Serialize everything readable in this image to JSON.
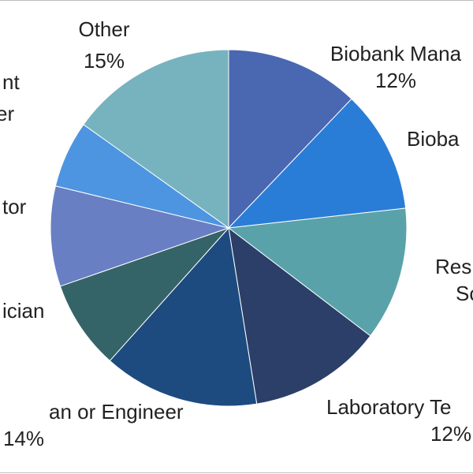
{
  "chart_data": {
    "type": "pie",
    "start_angle_deg": 0,
    "direction": "clockwise",
    "slices": [
      {
        "label": "Biobank Mana",
        "value": 12,
        "percent_label": "12%",
        "color": "#4A68B1"
      },
      {
        "label": "Bioba",
        "value": 11,
        "percent_label": "",
        "color": "#2A7DD6"
      },
      {
        "label": "Res\nSc",
        "value": 12,
        "percent_label": "",
        "color": "#5AA2AA"
      },
      {
        "label": "Laboratory Te",
        "value": 12,
        "percent_label": "12%",
        "color": "#2C3F68"
      },
      {
        "label": "an or Engineer",
        "value": 14,
        "percent_label": "14%",
        "color": "#1D4B80"
      },
      {
        "label": "ician",
        "value": 8,
        "percent_label": "",
        "color": "#356468"
      },
      {
        "label": "tor",
        "value": 9,
        "percent_label": "",
        "color": "#687FC3"
      },
      {
        "label": "nt\ner",
        "value": 6,
        "percent_label": "",
        "color": "#4D95E0"
      },
      {
        "label": "Other",
        "value": 15,
        "percent_label": "15%",
        "color": "#76B3BE"
      }
    ]
  }
}
